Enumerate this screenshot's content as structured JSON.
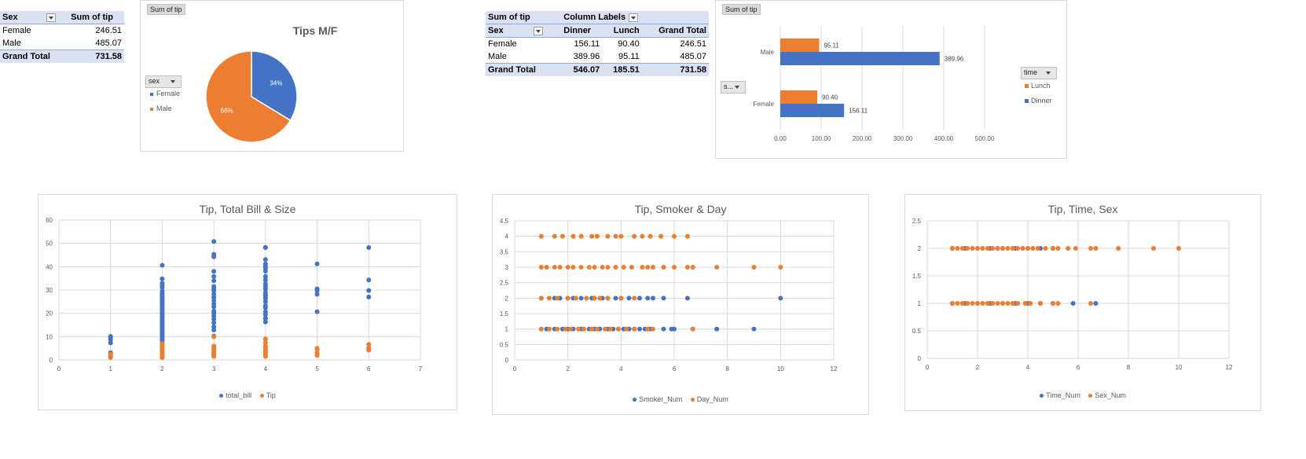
{
  "pivot1": {
    "headers": [
      "Sex",
      "Sum of tip"
    ],
    "rows": [
      {
        "label": "Female",
        "value": "246.51"
      },
      {
        "label": "Male",
        "value": "485.07"
      }
    ],
    "total": {
      "label": "Grand Total",
      "value": "731.58"
    }
  },
  "pie_chart": {
    "field_button": "Sum of tip",
    "legend_field": "sex",
    "chart_data": {
      "type": "pie",
      "title": "Tips M/F",
      "labels": [
        "Female",
        "Male"
      ],
      "values": [
        246.51,
        485.07
      ],
      "data_labels": [
        "34%",
        "66%"
      ],
      "colors": [
        "#4472c4",
        "#ed7d31"
      ],
      "legend": "left"
    }
  },
  "pivot2": {
    "corner": "Sum of tip",
    "column_labels": "Column Labels",
    "row_field": "Sex",
    "columns": [
      "Dinner",
      "Lunch",
      "Grand Total"
    ],
    "rows": [
      {
        "label": "Female",
        "values": [
          "156.11",
          "90.40",
          "246.51"
        ]
      },
      {
        "label": "Male",
        "values": [
          "389.96",
          "95.11",
          "485.07"
        ]
      }
    ],
    "total": {
      "label": "Grand Total",
      "values": [
        "546.07",
        "185.51",
        "731.58"
      ]
    }
  },
  "bar_chart": {
    "field_button": "Sum of tip",
    "axis_field": "s...",
    "legend_field": "time",
    "chart_data": {
      "type": "bar",
      "orientation": "horizontal",
      "categories": [
        "Male",
        "Female"
      ],
      "series": [
        {
          "name": "Lunch",
          "values": [
            95.11,
            90.4
          ],
          "labels": [
            "95.11",
            "90.40"
          ],
          "color": "#ed7d31"
        },
        {
          "name": "Dinner",
          "values": [
            389.96,
            156.11
          ],
          "labels": [
            "389.96",
            "156.11"
          ],
          "color": "#4472c4"
        }
      ],
      "xlim": [
        0,
        500
      ],
      "x_ticks": [
        "0.00",
        "100.00",
        "200.00",
        "300.00",
        "400.00",
        "500.00"
      ],
      "grid": true,
      "legend": "right"
    }
  },
  "scatter1": {
    "chart_data": {
      "type": "scatter",
      "title": "Tip, Total Bill & Size",
      "xlim": [
        0,
        7
      ],
      "ylim": [
        0,
        60
      ],
      "x_ticks": [
        "0",
        "1",
        "2",
        "3",
        "4",
        "5",
        "6",
        "7"
      ],
      "y_ticks": [
        "0",
        "10",
        "20",
        "30",
        "40",
        "50",
        "60"
      ],
      "series": [
        {
          "name": "total_bill",
          "color": "#4472c4",
          "x": [
            1,
            1,
            1,
            1,
            1,
            2,
            2,
            2,
            2,
            2,
            2,
            2,
            2,
            2,
            2,
            2,
            2,
            2,
            2,
            2,
            2,
            2,
            2,
            2,
            2,
            2,
            2,
            2,
            2,
            2,
            2,
            2,
            2,
            2,
            2,
            2,
            2,
            2,
            2,
            2,
            2,
            2,
            2,
            2,
            3,
            3,
            3,
            3,
            3,
            3,
            3,
            3,
            3,
            3,
            3,
            3,
            3,
            3,
            3,
            3,
            3,
            3,
            3,
            3,
            3,
            3,
            4,
            4,
            4,
            4,
            4,
            4,
            4,
            4,
            4,
            4,
            4,
            4,
            4,
            4,
            4,
            4,
            4,
            4,
            4,
            4,
            4,
            4,
            4,
            4,
            5,
            5,
            5,
            5,
            5,
            6,
            6,
            6,
            6
          ],
          "y": [
            3.1,
            7.3,
            8.6,
            9.6,
            10.1,
            7.6,
            8.5,
            9.8,
            10.5,
            11.2,
            12.0,
            12.7,
            13.4,
            14.1,
            14.8,
            15.5,
            16.2,
            16.9,
            17.6,
            18.3,
            19.0,
            19.7,
            20.4,
            21.1,
            21.8,
            22.5,
            23.2,
            23.9,
            24.6,
            25.3,
            26.0,
            26.7,
            27.4,
            28.1,
            28.8,
            29.5,
            31.0,
            32.0,
            32.9,
            34.8,
            40.6,
            9.0,
            11.0,
            13.0,
            10.3,
            14.3,
            16.0,
            17.5,
            18.8,
            20.1,
            21.0,
            22.8,
            24.0,
            25.5,
            26.9,
            28.2,
            29.7,
            30.6,
            31.5,
            34.0,
            35.8,
            38.0,
            44.3,
            45.3,
            50.8,
            12.9,
            16.3,
            17.8,
            19.5,
            20.7,
            22.4,
            23.3,
            25.0,
            26.4,
            27.2,
            28.0,
            29.0,
            30.5,
            31.7,
            32.7,
            34.3,
            35.8,
            38.1,
            39.4,
            40.2,
            41.2,
            43.1,
            48.2,
            48.3,
            18.0,
            20.7,
            28.2,
            29.8,
            30.5,
            41.2,
            27.0,
            29.8,
            34.3,
            48.2
          ]
        },
        {
          "name": "Tip",
          "color": "#ed7d31",
          "x": [
            1,
            1,
            1,
            1,
            2,
            2,
            2,
            2,
            2,
            2,
            2,
            2,
            2,
            2,
            2,
            2,
            3,
            3,
            3,
            3,
            3,
            3,
            3,
            3,
            3,
            4,
            4,
            4,
            4,
            4,
            4,
            4,
            4,
            4,
            5,
            5,
            5,
            5,
            6,
            6,
            6,
            6
          ],
          "y": [
            1.0,
            1.5,
            1.9,
            2.5,
            1.0,
            1.5,
            2.0,
            2.5,
            3.0,
            3.5,
            4.0,
            4.5,
            5.0,
            5.5,
            6.5,
            7.0,
            1.5,
            2.0,
            2.5,
            3.0,
            3.5,
            4.0,
            5.0,
            6.0,
            10.0,
            1.5,
            2.0,
            2.8,
            3.5,
            4.0,
            5.0,
            6.0,
            7.5,
            9.0,
            2.0,
            3.0,
            4.5,
            5.0,
            4.2,
            5.0,
            5.2,
            6.7
          ]
        }
      ],
      "legend": "bottom"
    }
  },
  "scatter2": {
    "chart_data": {
      "type": "scatter",
      "title": "Tip, Smoker & Day",
      "xlim": [
        0,
        12
      ],
      "ylim": [
        0,
        4.5
      ],
      "x_ticks": [
        "0",
        "2",
        "4",
        "6",
        "8",
        "10",
        "12"
      ],
      "y_ticks": [
        "0",
        "0.5",
        "1",
        "1.5",
        "2",
        "2.5",
        "3",
        "3.5",
        "4",
        "4.5"
      ],
      "series": [
        {
          "name": "Smoker_Num",
          "color": "#4472c4",
          "x": [
            1.0,
            1.2,
            1.5,
            1.8,
            2.0,
            2.2,
            2.5,
            2.8,
            3.0,
            3.2,
            3.5,
            3.7,
            3.9,
            4.1,
            4.3,
            4.5,
            4.7,
            4.9,
            5.1,
            5.6,
            5.9,
            6.0,
            6.7,
            7.6,
            9.0,
            1.0,
            1.5,
            1.7,
            2.0,
            2.2,
            2.5,
            2.9,
            3.0,
            3.3,
            3.5,
            3.8,
            4.0,
            4.3,
            4.7,
            5.0,
            5.2,
            5.6,
            6.5,
            10.0
          ],
          "y": [
            1,
            1,
            1,
            1,
            1,
            1,
            1,
            1,
            1,
            1,
            1,
            1,
            1,
            1,
            1,
            1,
            1,
            1,
            1,
            1,
            1,
            1,
            1,
            1,
            1,
            2,
            2,
            2,
            2,
            2,
            2,
            2,
            2,
            2,
            2,
            2,
            2,
            2,
            2,
            2,
            2,
            2,
            2,
            2
          ]
        },
        {
          "name": "Day_Num",
          "color": "#ed7d31",
          "x": [
            1.0,
            1.3,
            1.6,
            1.9,
            2.1,
            2.4,
            2.6,
            2.9,
            3.1,
            3.4,
            3.6,
            3.9,
            4.2,
            4.5,
            5.0,
            5.2,
            6.7,
            1.0,
            1.3,
            1.6,
            2.0,
            2.3,
            2.7,
            3.0,
            3.2,
            3.5,
            4.0,
            4.5,
            1.0,
            1.2,
            1.5,
            1.7,
            2.0,
            2.2,
            2.5,
            2.8,
            3.0,
            3.3,
            3.5,
            3.8,
            4.1,
            4.4,
            4.8,
            5.0,
            5.2,
            5.6,
            6.0,
            6.5,
            6.7,
            7.6,
            9.0,
            10.0,
            1.0,
            1.5,
            1.8,
            2.2,
            2.5,
            2.9,
            3.1,
            3.5,
            3.8,
            4.0,
            4.5,
            4.8,
            5.1,
            5.5,
            6.0,
            6.5
          ],
          "y": [
            1,
            1,
            1,
            1,
            1,
            1,
            1,
            1,
            1,
            1,
            1,
            1,
            1,
            1,
            1,
            1,
            1,
            2,
            2,
            2,
            2,
            2,
            2,
            2,
            2,
            2,
            2,
            2,
            3,
            3,
            3,
            3,
            3,
            3,
            3,
            3,
            3,
            3,
            3,
            3,
            3,
            3,
            3,
            3,
            3,
            3,
            3,
            3,
            3,
            3,
            3,
            3,
            4,
            4,
            4,
            4,
            4,
            4,
            4,
            4,
            4,
            4,
            4,
            4,
            4,
            4,
            4,
            4
          ]
        }
      ],
      "legend": "bottom"
    }
  },
  "scatter3": {
    "chart_data": {
      "type": "scatter",
      "title": "Tip, Time, Sex",
      "xlim": [
        0,
        12
      ],
      "ylim": [
        0,
        2.5
      ],
      "x_ticks": [
        "0",
        "2",
        "4",
        "6",
        "8",
        "10",
        "12"
      ],
      "y_ticks": [
        "0",
        "0.5",
        "1",
        "1.5",
        "2",
        "2.5"
      ],
      "series": [
        {
          "name": "Time_Num",
          "color": "#4472c4",
          "x": [
            1.0,
            1.5,
            2.0,
            2.5,
            3.0,
            3.5,
            4.0,
            4.5,
            5.0,
            5.8,
            6.7,
            1.0,
            1.5,
            2.0,
            2.5,
            2.8,
            3.0,
            3.5,
            4.0,
            4.5,
            5.0
          ],
          "y": [
            1,
            1,
            1,
            1,
            1,
            1,
            1,
            1,
            1,
            1,
            1,
            2,
            2,
            2,
            2,
            2,
            2,
            2,
            2,
            2,
            2
          ]
        },
        {
          "name": "Sex_Num",
          "color": "#ed7d31",
          "x": [
            1.0,
            1.2,
            1.4,
            1.6,
            1.8,
            2.0,
            2.2,
            2.4,
            2.6,
            2.8,
            3.0,
            3.2,
            3.4,
            3.6,
            3.9,
            4.1,
            4.5,
            5.0,
            5.2,
            6.5,
            1.0,
            1.2,
            1.4,
            1.6,
            1.8,
            2.0,
            2.2,
            2.4,
            2.6,
            2.8,
            3.0,
            3.2,
            3.4,
            3.6,
            3.8,
            4.0,
            4.2,
            4.4,
            4.7,
            5.0,
            5.2,
            5.6,
            5.9,
            6.5,
            6.7,
            7.6,
            9.0,
            10.0
          ],
          "y": [
            1,
            1,
            1,
            1,
            1,
            1,
            1,
            1,
            1,
            1,
            1,
            1,
            1,
            1,
            1,
            1,
            1,
            1,
            1,
            1,
            2,
            2,
            2,
            2,
            2,
            2,
            2,
            2,
            2,
            2,
            2,
            2,
            2,
            2,
            2,
            2,
            2,
            2,
            2,
            2,
            2,
            2,
            2,
            2,
            2,
            2,
            2,
            2
          ]
        }
      ],
      "legend": "bottom"
    }
  }
}
